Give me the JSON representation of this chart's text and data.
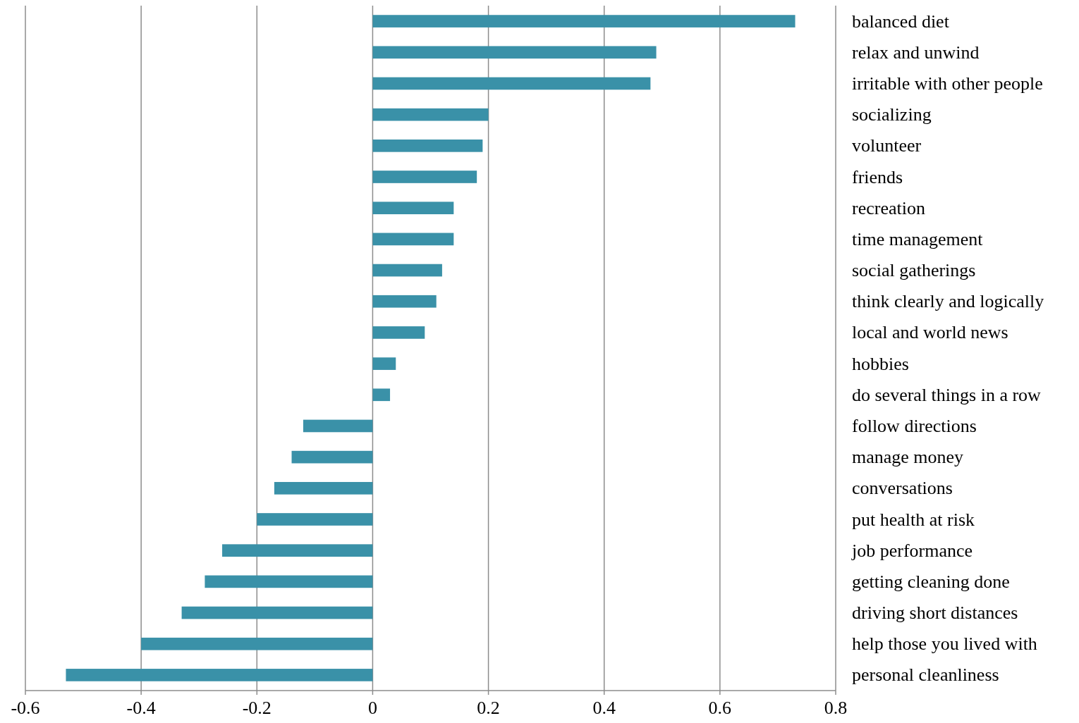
{
  "chart_data": {
    "type": "bar",
    "orientation": "horizontal",
    "categories": [
      "balanced diet",
      "relax and unwind",
      "irritable with other people",
      "socializing",
      "volunteer",
      "friends",
      "recreation",
      "time management",
      "social gatherings",
      "think clearly and logically",
      "local and world news",
      "hobbies",
      "do several things in a row",
      "follow directions",
      "manage money",
      "conversations",
      "put health at risk",
      "job performance",
      "getting cleaning done",
      "driving short distances",
      "help those you lived with",
      "personal cleanliness"
    ],
    "values": [
      0.73,
      0.49,
      0.48,
      0.2,
      0.19,
      0.18,
      0.14,
      0.14,
      0.12,
      0.11,
      0.09,
      0.04,
      0.03,
      -0.12,
      -0.14,
      -0.17,
      -0.2,
      -0.26,
      -0.29,
      -0.33,
      -0.4,
      -0.53
    ],
    "color": "#3a91a8",
    "xlim": [
      -0.6,
      0.8
    ],
    "xticks": [
      -0.6,
      -0.4,
      -0.2,
      0,
      0.2,
      0.4,
      0.6,
      0.8
    ],
    "grid": "x"
  }
}
